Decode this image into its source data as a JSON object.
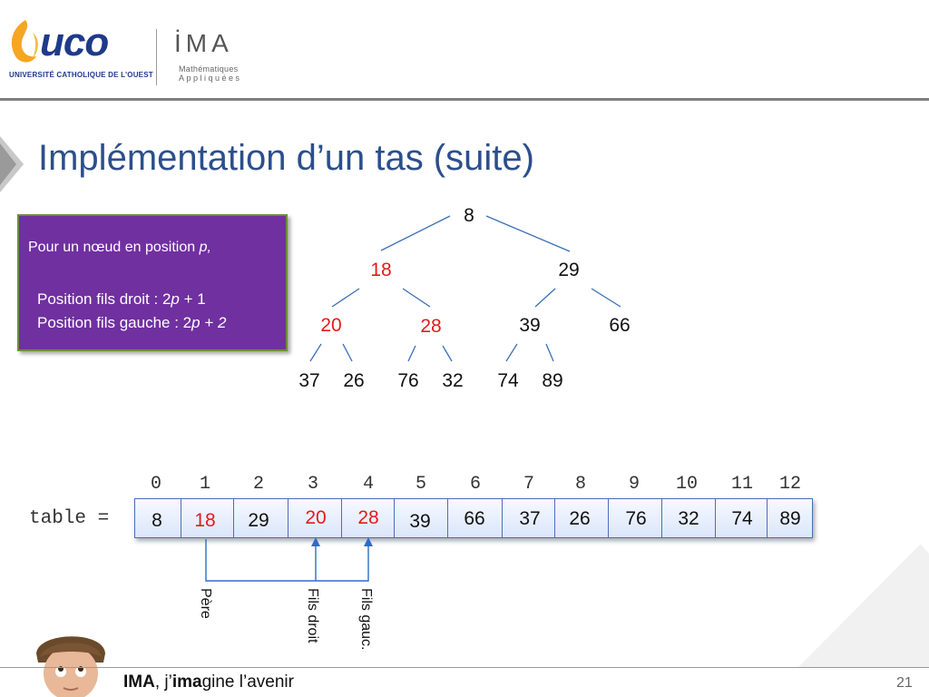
{
  "header": {
    "uco_logo": "uco",
    "uco_subtitle": "UNIVERSITÉ CATHOLIQUE DE L'OUEST",
    "ima_logo": "İMA",
    "ima_sub1": "Mathématiques",
    "ima_sub2": "Appliquées"
  },
  "title": "Implémentation d’un tas (suite)",
  "info_box": {
    "line1_prefix": "Pour un nœud en position ",
    "line1_var": "p,",
    "line2_prefix": "Position fils droit :  2",
    "line2_var": "p",
    "line2_suffix": " + 1",
    "line3_prefix": "Position fils gauche :  2",
    "line3_var": "p + 2"
  },
  "tree": {
    "nodes": [
      "8",
      "18",
      "29",
      "20",
      "28",
      "39",
      "66",
      "37",
      "26",
      "76",
      "32",
      "74",
      "89"
    ],
    "highlighted": [
      1,
      3,
      4
    ]
  },
  "array": {
    "label": "table =",
    "indices": [
      "0",
      "1",
      "2",
      "3",
      "4",
      "5",
      "6",
      "7",
      "8",
      "9",
      "10",
      "11",
      "12"
    ],
    "values": [
      "8",
      "18",
      "29",
      "20",
      "28",
      "39",
      "66",
      "37",
      "26",
      "76",
      "32",
      "74",
      "89"
    ]
  },
  "annotations": {
    "pere": "Père",
    "fils_droit": "Fils droit",
    "fils_gauc": "Fils gauc."
  },
  "footer": {
    "brand": "IMA",
    "t1": ", j’",
    "t2": "ima",
    "t3": "gine l’avenir",
    "page": "21"
  },
  "colors": {
    "title": "#2c4f8c",
    "box": "#7030a0",
    "highlight": "#e31b1b",
    "tree_lines": "#3b6fb5",
    "arrow": "#2f6bc7"
  }
}
